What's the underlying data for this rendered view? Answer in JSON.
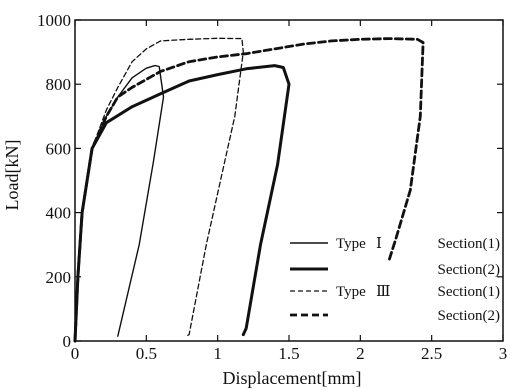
{
  "chart_data": {
    "type": "line",
    "title": "",
    "xlabel": "Displacement[mm]",
    "ylabel": "Load[kN]",
    "xlim": [
      0,
      3
    ],
    "ylim": [
      0,
      1000
    ],
    "xticks": [
      0,
      0.5,
      1,
      1.5,
      2,
      2.5,
      3
    ],
    "xtick_labels": [
      "0",
      "0.5",
      "1",
      "1.5",
      "2",
      "2.5",
      "3"
    ],
    "yticks": [
      0,
      200,
      400,
      600,
      800,
      1000
    ],
    "ytick_labels": [
      "0",
      "200",
      "400",
      "600",
      "800",
      "1000"
    ],
    "grid": false,
    "legend_position": "bottom-right",
    "legend": [
      {
        "type_label": "Type",
        "numeral": "Ⅰ",
        "section_label": "Section(1)",
        "style": "solid-thin"
      },
      {
        "type_label": "",
        "numeral": "",
        "section_label": "Section(2)",
        "style": "solid-thick"
      },
      {
        "type_label": "Type",
        "numeral": "Ⅲ",
        "section_label": "Section(1)",
        "style": "dashed-thin"
      },
      {
        "type_label": "",
        "numeral": "",
        "section_label": "Section(2)",
        "style": "dashed-thick"
      }
    ],
    "series": [
      {
        "style": "solid-thin",
        "points": [
          [
            0.0,
            0
          ],
          [
            0.02,
            200
          ],
          [
            0.05,
            400
          ],
          [
            0.12,
            600
          ],
          [
            0.22,
            700
          ],
          [
            0.3,
            760
          ],
          [
            0.4,
            820
          ],
          [
            0.5,
            850
          ],
          [
            0.56,
            858
          ],
          [
            0.59,
            855
          ],
          [
            0.62,
            760
          ],
          [
            0.55,
            560
          ],
          [
            0.45,
            300
          ],
          [
            0.3,
            15
          ]
        ]
      },
      {
        "style": "solid-thick",
        "points": [
          [
            0.0,
            0
          ],
          [
            0.02,
            200
          ],
          [
            0.05,
            400
          ],
          [
            0.12,
            600
          ],
          [
            0.22,
            680
          ],
          [
            0.4,
            730
          ],
          [
            0.6,
            770
          ],
          [
            0.8,
            810
          ],
          [
            1.0,
            830
          ],
          [
            1.2,
            848
          ],
          [
            1.4,
            858
          ],
          [
            1.46,
            852
          ],
          [
            1.5,
            800
          ],
          [
            1.42,
            550
          ],
          [
            1.3,
            300
          ],
          [
            1.2,
            40
          ],
          [
            1.18,
            20
          ]
        ]
      },
      {
        "style": "dashed-thin",
        "points": [
          [
            0.0,
            0
          ],
          [
            0.02,
            200
          ],
          [
            0.05,
            400
          ],
          [
            0.12,
            600
          ],
          [
            0.22,
            720
          ],
          [
            0.3,
            790
          ],
          [
            0.4,
            870
          ],
          [
            0.5,
            910
          ],
          [
            0.6,
            935
          ],
          [
            0.8,
            940
          ],
          [
            1.0,
            943
          ],
          [
            1.17,
            942
          ],
          [
            1.18,
            900
          ],
          [
            1.12,
            700
          ],
          [
            1.02,
            500
          ],
          [
            0.92,
            300
          ],
          [
            0.8,
            20
          ],
          [
            0.78,
            15
          ]
        ]
      },
      {
        "style": "dashed-thick",
        "points": [
          [
            0.0,
            0
          ],
          [
            0.02,
            200
          ],
          [
            0.05,
            400
          ],
          [
            0.12,
            600
          ],
          [
            0.22,
            700
          ],
          [
            0.3,
            760
          ],
          [
            0.4,
            790
          ],
          [
            0.6,
            840
          ],
          [
            0.8,
            870
          ],
          [
            1.0,
            885
          ],
          [
            1.2,
            895
          ],
          [
            1.4,
            910
          ],
          [
            1.6,
            925
          ],
          [
            1.8,
            935
          ],
          [
            2.0,
            940
          ],
          [
            2.2,
            942
          ],
          [
            2.4,
            940
          ],
          [
            2.44,
            930
          ],
          [
            2.42,
            700
          ],
          [
            2.35,
            470
          ],
          [
            2.25,
            320
          ],
          [
            2.2,
            250
          ]
        ]
      }
    ]
  }
}
